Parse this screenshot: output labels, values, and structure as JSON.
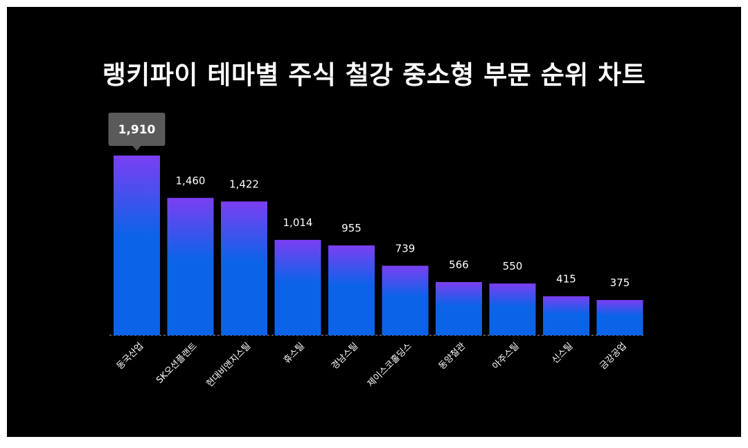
{
  "chart_data": {
    "type": "bar",
    "title": "랭키파이 테마별 주식 철강 중소형 부문 순위 차트",
    "categories": [
      "동국산업",
      "SK오션플랜트",
      "현대비앤지스틸",
      "휴스틸",
      "경남스틸",
      "제이스코홀딩스",
      "동양철관",
      "아주스틸",
      "신스틸",
      "금강공업"
    ],
    "values": [
      1910,
      1460,
      1422,
      1014,
      955,
      739,
      566,
      550,
      415,
      375
    ],
    "value_labels": [
      "1,910",
      "1,460",
      "1,422",
      "1,014",
      "955",
      "739",
      "566",
      "550",
      "415",
      "375"
    ],
    "highlight_index": 0,
    "ylim": [
      0,
      1910
    ],
    "grid": false,
    "xlabel": "",
    "ylabel": "",
    "colors": {
      "background": "#000000",
      "bar_top": "#7b3ff2",
      "bar_bottom": "#0b63e8",
      "baseline": "#a0a0c0",
      "tooltip_bg": "#5a5a5a",
      "text": "#ffffff"
    }
  }
}
